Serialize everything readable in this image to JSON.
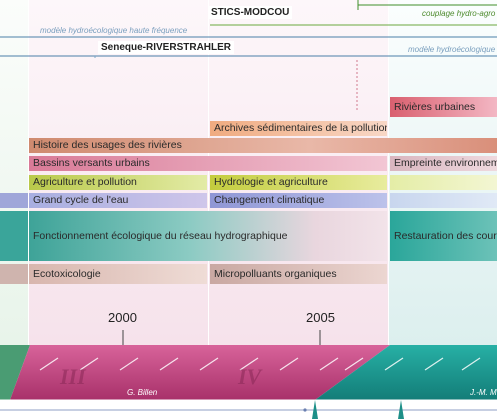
{
  "models": {
    "modcou_label": "STICS-MODCOU",
    "couplage_label": "couplage hydro-agro",
    "haute_freq_label": "modèle hydroécologique haute fréquence",
    "riverstrahler_label": "Seneque-RIVERSTRAHLER",
    "hydroeco_label": "modèle hydroécologique"
  },
  "themes": {
    "rivieres_urbaines": "Rivières urbaines",
    "archives": "Archives sédimentaires de la pollution",
    "histoire": "Histoire des usages des rivières",
    "bassins": "Bassins versants urbains",
    "empreinte": "Empreinte environnementale",
    "agriculture": "Agriculture et pollution",
    "hydrologie": "Hydrologie et agriculture",
    "grand_cycle": "Grand cycle de l'eau",
    "changement": "Changement climatique",
    "fonctionnement": "Fonctionnement écologique du réseau hydrographique",
    "restauration": "Restauration des cours d'eau",
    "ecotox": "Ecotoxicologie",
    "micropolluants": "Micropolluants organiques"
  },
  "timeline": {
    "year_2000": "2000",
    "year_2005": "2005",
    "phase_iii": "III",
    "phase_iv": "IV",
    "director_1": "G. Billen",
    "director_2": "J.-M. M"
  },
  "colors": {
    "phase_pink": "#c2447e",
    "phase_teal": "#1f9f9a",
    "bg_pink": "#f7e3ec",
    "bg_teal": "#e2f2f1",
    "bg_green": "#e8f4ea"
  }
}
